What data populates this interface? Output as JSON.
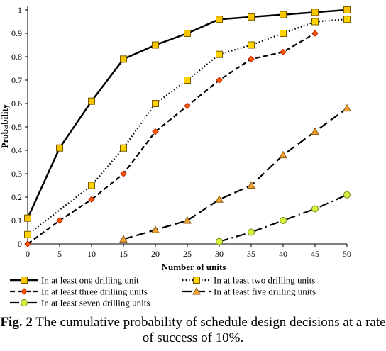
{
  "chart_data": {
    "type": "line",
    "xlabel": "Number of units",
    "ylabel": "Probability",
    "xlim": [
      0,
      50
    ],
    "ylim": [
      0,
      1
    ],
    "x_ticks": [
      "0",
      "5",
      "10",
      "15",
      "20",
      "25",
      "30",
      "35",
      "40",
      "45",
      "50"
    ],
    "y_ticks": [
      "0",
      "0.1",
      "0.2",
      "0.3",
      "0.4",
      "0.5",
      "0.6",
      "0.7",
      "0.8",
      "0.9",
      "1"
    ],
    "grid": false,
    "legend_position": "bottom",
    "series": [
      {
        "name": "In at least one drilling unit",
        "style": "solid",
        "marker": "square",
        "line_color": "#000000",
        "marker_fill": "#f7c600",
        "marker_stroke": "#7a5a00",
        "x": [
          0,
          5,
          10,
          15,
          20,
          25,
          30,
          35,
          40,
          45,
          50
        ],
        "y": [
          0.11,
          0.41,
          0.61,
          0.79,
          0.85,
          0.9,
          0.96,
          0.97,
          0.98,
          0.99,
          1.0
        ]
      },
      {
        "name": "In at least two drilling units",
        "style": "dotted",
        "marker": "square",
        "line_color": "#000000",
        "marker_fill": "#ffd400",
        "marker_stroke": "#7a5a00",
        "x": [
          0,
          10,
          15,
          20,
          25,
          30,
          35,
          40,
          45,
          50
        ],
        "y": [
          0.04,
          0.25,
          0.41,
          0.6,
          0.7,
          0.81,
          0.85,
          0.9,
          0.95,
          0.96
        ]
      },
      {
        "name": "In at least three drilling units",
        "style": "dashed",
        "marker": "diamond",
        "line_color": "#000000",
        "marker_fill": "#ff5a00",
        "marker_stroke": "#c02000",
        "x": [
          0,
          5,
          10,
          15,
          20,
          25,
          30,
          35,
          40,
          45
        ],
        "y": [
          0.0,
          0.1,
          0.19,
          0.3,
          0.48,
          0.59,
          0.7,
          0.79,
          0.82,
          0.9
        ]
      },
      {
        "name": "In at least five drilling units",
        "style": "longdash",
        "marker": "triangle",
        "line_color": "#000000",
        "marker_fill": "#f0a030",
        "marker_stroke": "#8a5a10",
        "x": [
          15,
          20,
          25,
          30,
          35,
          40,
          45,
          50
        ],
        "y": [
          0.02,
          0.06,
          0.1,
          0.19,
          0.25,
          0.38,
          0.48,
          0.58
        ]
      },
      {
        "name": "In at least seven drilling units",
        "style": "dashdot",
        "marker": "circle",
        "line_color": "#000000",
        "marker_fill": "#d8f040",
        "marker_stroke": "#7a8a10",
        "x": [
          30,
          35,
          40,
          45,
          50
        ],
        "y": [
          0.01,
          0.05,
          0.1,
          0.15,
          0.21
        ]
      }
    ]
  },
  "caption": {
    "label": "Fig. 2",
    "text": " The cumulative probability of schedule design decisions at a rate of success of 10%."
  }
}
